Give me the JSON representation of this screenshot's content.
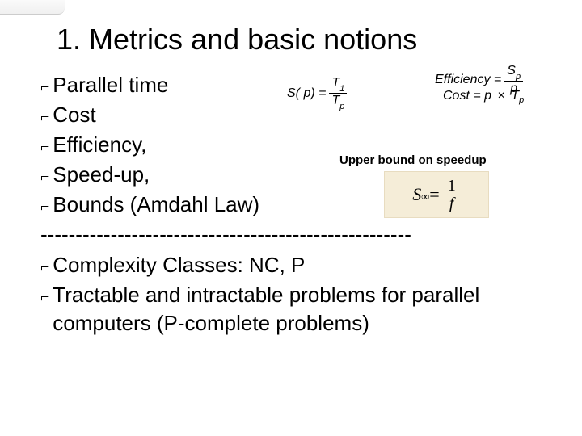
{
  "title": "1. Metrics and basic notions",
  "bullets": {
    "b1": "Parallel time",
    "b2": "Cost",
    "b3": "Efficiency,",
    "b4": "Speed-up,",
    "b5": "Bounds (Amdahl Law)",
    "b6": "Complexity Classes: NC, P",
    "b7": "Tractable and intractable problems for parallel computers (P-complete problems)"
  },
  "divider": "-----------------------------------------------------",
  "formulas": {
    "speedup_lhs": "S( p) =",
    "speedup_num_t": "T",
    "speedup_num_sub": "1",
    "speedup_den_t": "T",
    "speedup_den_sub": "p",
    "eff_lhs": "Efficiency =",
    "eff_num_s": "S",
    "eff_num_sub": "p",
    "eff_den": "p",
    "cost_lhs": "Cost = p",
    "cost_times": "×",
    "cost_t": "T",
    "cost_sub": "p",
    "upper": "Upper bound on speedup",
    "sinf_s": "S",
    "sinf_sub": "∞",
    "sinf_eq": " = ",
    "sinf_num": "1",
    "sinf_den": "f"
  },
  "colors": {
    "text": "#000000",
    "bg": "#ffffff",
    "formula_bg": "#f5edd8"
  }
}
